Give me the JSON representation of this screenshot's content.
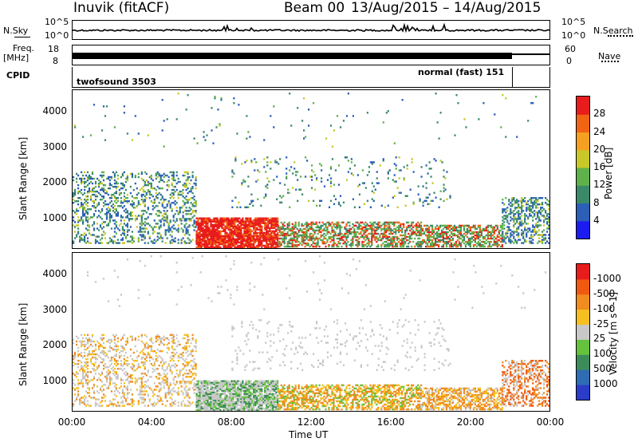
{
  "header": {
    "station": "Inuvik (fitACF)",
    "beam": "Beam 00",
    "dates": "13/Aug/2015 – 14/Aug/2015"
  },
  "top_panels": {
    "nsky_label": "N.Sky",
    "nsky_ticks": [
      "10^5",
      "10^0"
    ],
    "nsearch_label": "N.Search",
    "nsearch_ticks": [
      "10^5",
      "10^0"
    ],
    "freq_label": "Freq.",
    "freq_unit": "[MHz]",
    "freq_ticks": [
      "18",
      "8"
    ],
    "nave_label": "Nave",
    "nave_ticks": [
      "60",
      "0"
    ],
    "cpid_label": "CPID",
    "cpid_modes": [
      {
        "name": "twofsound 3503",
        "start_hour": 0,
        "end_hour": 21.9
      },
      {
        "name": "normal (fast) 151",
        "start_hour": 21.9,
        "end_hour": 24
      }
    ]
  },
  "chart_data": [
    {
      "type": "heatmap",
      "name": "power",
      "ylabel": "Slant Range [km]",
      "xlabel": "",
      "yticks": [
        1000,
        2000,
        3000,
        4000
      ],
      "ylim": [
        180,
        4600
      ],
      "xlim": [
        0,
        24
      ],
      "colorbar": {
        "label": "Power [dB]",
        "ticks": [
          "4",
          "8",
          "12",
          "16",
          "20",
          "24",
          "28"
        ],
        "colors": [
          "#1c1cf0",
          "#2b5fb8",
          "#3a8a6a",
          "#5fb24a",
          "#c8c828",
          "#f5a020",
          "#f06414",
          "#e81c1c"
        ]
      }
    },
    {
      "type": "heatmap",
      "name": "velocity",
      "ylabel": "Slant Range [km]",
      "xlabel": "Time UT",
      "xticks": [
        "00:00",
        "04:00",
        "08:00",
        "12:00",
        "16:00",
        "20:00",
        "00:00"
      ],
      "yticks": [
        1000,
        2000,
        3000,
        4000
      ],
      "ylim": [
        180,
        4600
      ],
      "xlim": [
        0,
        24
      ],
      "colorbar": {
        "label": "Velocity [m s^-1]",
        "ticks": [
          "1000",
          "500",
          "100",
          "25",
          "-25",
          "-100",
          "-500",
          "-1000"
        ],
        "colors": [
          "#2a3cc8",
          "#2e6cb4",
          "#3c8c5a",
          "#66c23c",
          "#c8c8c8",
          "#f5c020",
          "#f08c20",
          "#f05a10",
          "#e81c1c"
        ]
      }
    }
  ],
  "colors": {
    "ground_scatter": "#a0a0a0",
    "axis": "#000000"
  }
}
